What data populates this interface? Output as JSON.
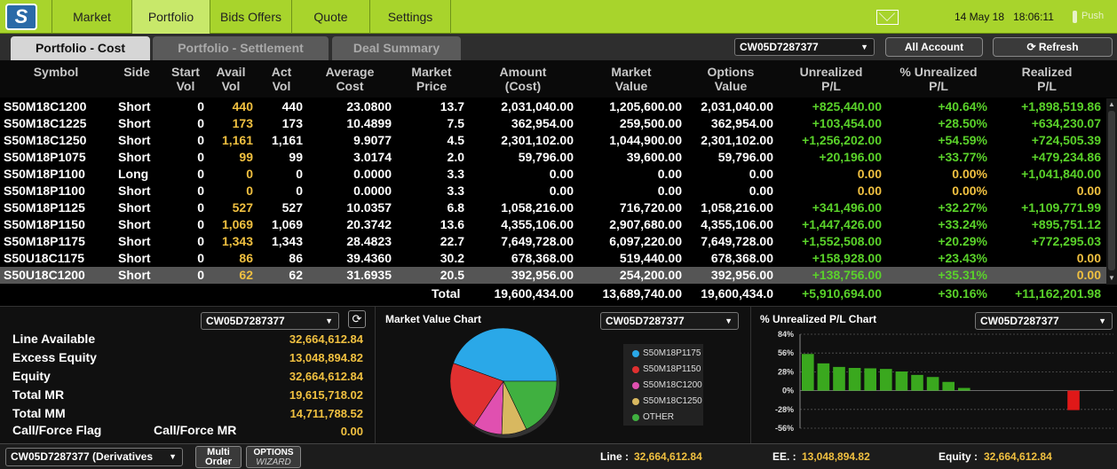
{
  "nav": {
    "tabs": [
      "Market",
      "Portfolio",
      "Bids Offers",
      "Quote",
      "Settings"
    ],
    "date": "14 May 18",
    "time": "18:06:11",
    "push": "Push"
  },
  "subtabs": [
    "Portfolio - Cost",
    "Portfolio - Settlement",
    "Deal Summary"
  ],
  "account": "CW05D7287377",
  "all_account_label": "All Account",
  "refresh_label": "Refresh",
  "table": {
    "headers": [
      [
        "Symbol"
      ],
      [
        "Side"
      ],
      [
        "Start",
        "Vol"
      ],
      [
        "Avail",
        "Vol"
      ],
      [
        "Act",
        "Vol"
      ],
      [
        "Average",
        "Cost"
      ],
      [
        "Market",
        "Price"
      ],
      [
        "Amount",
        "(Cost)"
      ],
      [
        "Market",
        "Value"
      ],
      [
        "Options",
        "Value"
      ],
      [
        "Unrealized",
        "P/L"
      ],
      [
        "% Unrealized",
        "P/L"
      ],
      [
        "Realized",
        "P/L"
      ]
    ],
    "rows": [
      [
        "S50M18C1200",
        "Short",
        "0",
        "440",
        "440",
        "23.0800",
        "13.7",
        "2,031,040.00",
        "1,205,600.00",
        "2,031,040.00",
        "+825,440.00",
        "+40.64%",
        "+1,898,519.86"
      ],
      [
        "S50M18C1225",
        "Short",
        "0",
        "173",
        "173",
        "10.4899",
        "7.5",
        "362,954.00",
        "259,500.00",
        "362,954.00",
        "+103,454.00",
        "+28.50%",
        "+634,230.07"
      ],
      [
        "S50M18C1250",
        "Short",
        "0",
        "1,161",
        "1,161",
        "9.9077",
        "4.5",
        "2,301,102.00",
        "1,044,900.00",
        "2,301,102.00",
        "+1,256,202.00",
        "+54.59%",
        "+724,505.39"
      ],
      [
        "S50M18P1075",
        "Short",
        "0",
        "99",
        "99",
        "3.0174",
        "2.0",
        "59,796.00",
        "39,600.00",
        "59,796.00",
        "+20,196.00",
        "+33.77%",
        "+479,234.86"
      ],
      [
        "S50M18P1100",
        "Long",
        "0",
        "0",
        "0",
        "0.0000",
        "3.3",
        "0.00",
        "0.00",
        "0.00",
        "0.00",
        "0.00%",
        "+1,041,840.00"
      ],
      [
        "S50M18P1100",
        "Short",
        "0",
        "0",
        "0",
        "0.0000",
        "3.3",
        "0.00",
        "0.00",
        "0.00",
        "0.00",
        "0.00%",
        "0.00"
      ],
      [
        "S50M18P1125",
        "Short",
        "0",
        "527",
        "527",
        "10.0357",
        "6.8",
        "1,058,216.00",
        "716,720.00",
        "1,058,216.00",
        "+341,496.00",
        "+32.27%",
        "+1,109,771.99"
      ],
      [
        "S50M18P1150",
        "Short",
        "0",
        "1,069",
        "1,069",
        "20.3742",
        "13.6",
        "4,355,106.00",
        "2,907,680.00",
        "4,355,106.00",
        "+1,447,426.00",
        "+33.24%",
        "+895,751.12"
      ],
      [
        "S50M18P1175",
        "Short",
        "0",
        "1,343",
        "1,343",
        "28.4823",
        "22.7",
        "7,649,728.00",
        "6,097,220.00",
        "7,649,728.00",
        "+1,552,508.00",
        "+20.29%",
        "+772,295.03"
      ],
      [
        "S50U18C1175",
        "Short",
        "0",
        "86",
        "86",
        "39.4360",
        "30.2",
        "678,368.00",
        "519,440.00",
        "678,368.00",
        "+158,928.00",
        "+23.43%",
        "0.00"
      ],
      [
        "S50U18C1200",
        "Short",
        "0",
        "62",
        "62",
        "31.6935",
        "20.5",
        "392,956.00",
        "254,200.00",
        "392,956.00",
        "+138,756.00",
        "+35.31%",
        "0.00"
      ]
    ],
    "total": {
      "label": "Total",
      "amount": "19,600,434.00",
      "market_value": "13,689,740.00",
      "options_value": "19,600,434.0",
      "unrealized": "+5,910,694.00",
      "pct_unrealized": "+30.16%",
      "realized": "+11,162,201.98"
    }
  },
  "account_panel": {
    "items": [
      {
        "label": "Line Available",
        "value": "32,664,612.84"
      },
      {
        "label": "Excess Equity",
        "value": "13,048,894.82"
      },
      {
        "label": "Equity",
        "value": "32,664,612.84"
      },
      {
        "label": "Total MR",
        "value": "19,615,718.02"
      },
      {
        "label": "Total MM",
        "value": "14,711,788.52"
      }
    ],
    "flag_label": "Call/Force Flag",
    "flag_sub": "Call/Force MR",
    "flag_value": "0.00"
  },
  "mv_chart": {
    "title": "Market Value Chart",
    "legend": [
      {
        "name": "S50M18P1175",
        "color": "#2aa8e8"
      },
      {
        "name": "S50M18P1150",
        "color": "#e03030"
      },
      {
        "name": "S50M18C1200",
        "color": "#e050b0"
      },
      {
        "name": "S50M18C1250",
        "color": "#d8b860"
      },
      {
        "name": "OTHER",
        "color": "#40b040"
      }
    ]
  },
  "pl_chart": {
    "title": "% Unrealized P/L Chart",
    "yticks": [
      "84%",
      "56%",
      "28%",
      "0%",
      "-28%",
      "-56%"
    ]
  },
  "chart_data": [
    {
      "type": "pie",
      "title": "Market Value Chart",
      "categories": [
        "S50M18P1175",
        "S50M18P1150",
        "S50M18C1200",
        "S50M18C1250",
        "OTHER"
      ],
      "values": [
        44.5,
        21.2,
        8.8,
        7.6,
        17.9
      ]
    },
    {
      "type": "bar",
      "title": "% Unrealized P/L Chart",
      "ylim": [
        -56,
        84
      ],
      "values": [
        54.6,
        40.6,
        35.3,
        33.8,
        33.2,
        32.3,
        28.5,
        23.4,
        20.3,
        13.0,
        4.0,
        0,
        0,
        0,
        0,
        0,
        0,
        -29
      ]
    }
  ],
  "footer": {
    "account_select": "CW05D7287377 (Derivatives",
    "multi_order": "Multi Order",
    "options_wizard_top": "OPTIONS",
    "options_wizard_bottom": "WIZARD",
    "line_label": "Line :",
    "line_value": "32,664,612.84",
    "ee_label": "EE. :",
    "ee_value": "13,048,894.82",
    "equity_label": "Equity :",
    "equity_value": "32,664,612.84"
  }
}
